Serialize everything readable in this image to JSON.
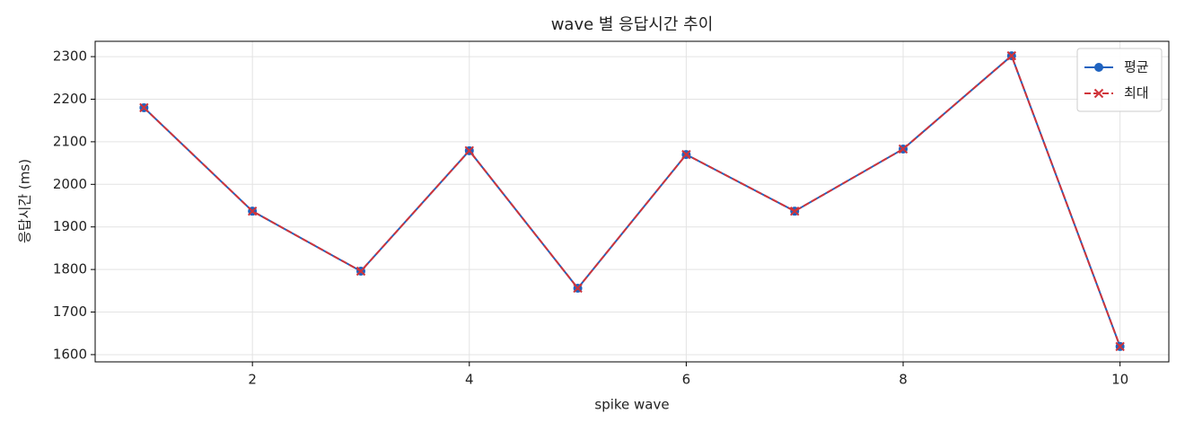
{
  "chart_data": {
    "type": "line",
    "title": "wave 별 응답시간 추이",
    "x_label": "spike wave",
    "y_label": "응답시간 (ms)",
    "x": [
      1,
      2,
      3,
      4,
      5,
      6,
      7,
      8,
      9,
      10
    ],
    "series": [
      {
        "name": "평균",
        "color": "#1f63c0",
        "marker": "circle",
        "dash": "solid",
        "values": [
          2180,
          1937,
          1796,
          2079,
          1756,
          2070,
          1937,
          2083,
          2302,
          1619
        ]
      },
      {
        "name": "최대",
        "color": "#d0343a",
        "marker": "x",
        "dash": "dashed",
        "values": [
          2180,
          1937,
          1796,
          2079,
          1756,
          2070,
          1937,
          2083,
          2302,
          1619
        ]
      }
    ],
    "xlim": [
      0.55,
      10.45
    ],
    "xticks": [
      2,
      4,
      6,
      8,
      10
    ],
    "ylim": [
      1583,
      2336
    ],
    "yticks": [
      1600,
      1700,
      1800,
      1900,
      2000,
      2100,
      2200,
      2300
    ],
    "grid": true,
    "legend": "upper right"
  }
}
